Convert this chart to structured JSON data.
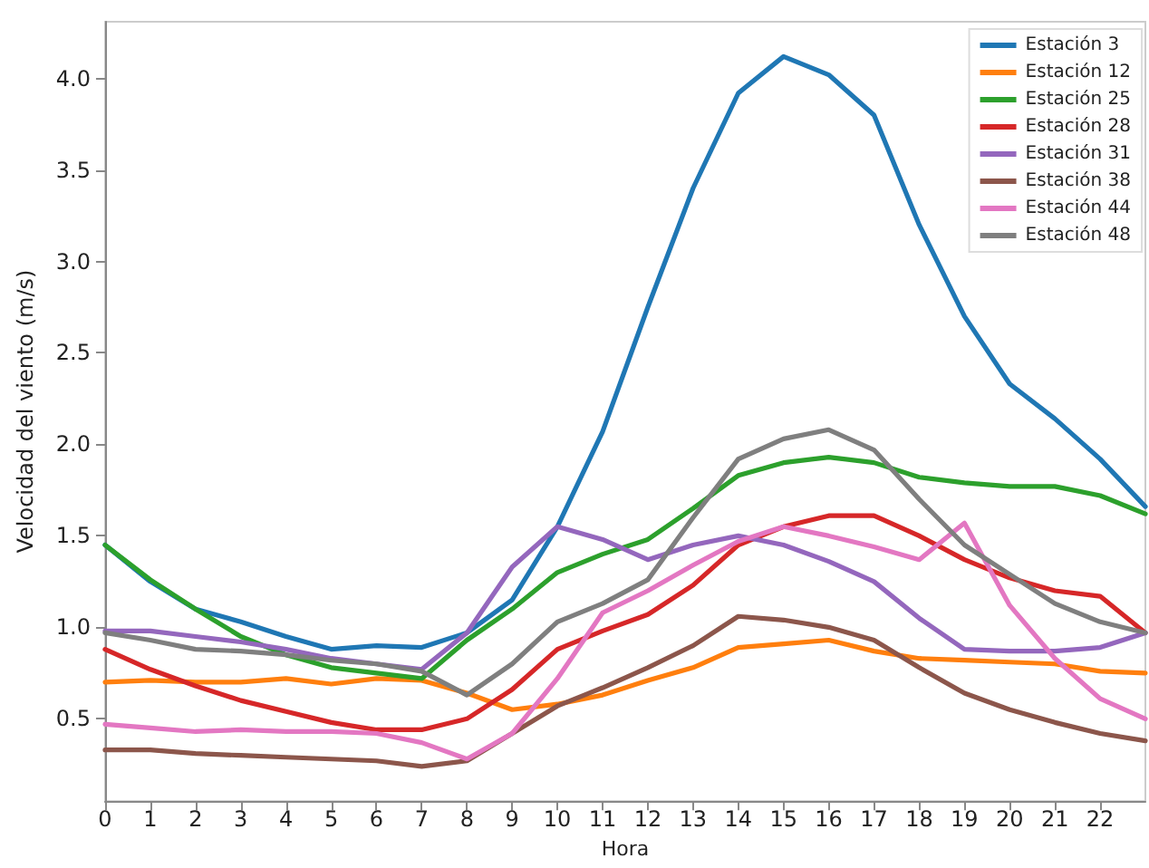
{
  "chart_data": {
    "type": "line",
    "xlabel": "Hora",
    "ylabel": "Velocidad del viento (m/s)",
    "x": [
      0,
      1,
      2,
      3,
      4,
      5,
      6,
      7,
      8,
      9,
      10,
      11,
      12,
      13,
      14,
      15,
      16,
      17,
      18,
      19,
      20,
      21,
      22,
      23
    ],
    "xlim": [
      0,
      23
    ],
    "xticks": [
      0,
      1,
      2,
      3,
      4,
      5,
      6,
      7,
      8,
      9,
      10,
      11,
      12,
      13,
      14,
      15,
      16,
      17,
      18,
      19,
      20,
      21,
      22
    ],
    "ylim": [
      0.05,
      4.31
    ],
    "yticks": [
      0.5,
      {
        "value": 1,
        "label": "1.0"
      },
      1.5,
      {
        "value": 2,
        "label": "2.0"
      },
      2.5,
      {
        "value": 3,
        "label": "3.0"
      },
      3.5,
      {
        "value": 4,
        "label": "4.0"
      }
    ],
    "grid": false,
    "legend": "top right",
    "marker": "none",
    "line_style": "solid",
    "series": [
      {
        "name": "Estación 3",
        "color": "#1f77b4",
        "values": [
          1.45,
          1.25,
          1.1,
          1.03,
          0.95,
          0.88,
          0.9,
          0.89,
          0.97,
          1.15,
          1.55,
          2.07,
          2.75,
          3.4,
          3.92,
          4.12,
          4.02,
          3.8,
          3.2,
          2.7,
          2.33,
          2.14,
          1.92,
          1.66
        ]
      },
      {
        "name": "Estación 12",
        "color": "#ff7f0e",
        "values": [
          0.7,
          0.71,
          0.7,
          0.7,
          0.72,
          0.69,
          0.72,
          0.71,
          0.64,
          0.55,
          0.58,
          0.63,
          0.71,
          0.78,
          0.89,
          0.91,
          0.93,
          0.87,
          0.83,
          0.82,
          0.81,
          0.8,
          0.76,
          0.75
        ]
      },
      {
        "name": "Estación 25",
        "color": "#2ca02c",
        "values": [
          1.45,
          1.26,
          1.1,
          0.95,
          0.85,
          0.78,
          0.75,
          0.72,
          0.93,
          1.1,
          1.3,
          1.4,
          1.48,
          1.65,
          1.83,
          1.9,
          1.93,
          1.9,
          1.82,
          1.79,
          1.77,
          1.77,
          1.72,
          1.62
        ]
      },
      {
        "name": "Estación 28",
        "color": "#d62728",
        "values": [
          0.88,
          0.77,
          0.68,
          0.6,
          0.54,
          0.48,
          0.44,
          0.44,
          0.5,
          0.66,
          0.88,
          0.98,
          1.07,
          1.23,
          1.45,
          1.55,
          1.61,
          1.61,
          1.5,
          1.37,
          1.27,
          1.2,
          1.17,
          0.97
        ]
      },
      {
        "name": "Estación 31",
        "color": "#9467bd",
        "values": [
          0.98,
          0.98,
          0.95,
          0.92,
          0.88,
          0.83,
          0.8,
          0.77,
          0.97,
          1.33,
          1.55,
          1.48,
          1.37,
          1.45,
          1.5,
          1.45,
          1.36,
          1.25,
          1.05,
          0.88,
          0.87,
          0.87,
          0.89,
          0.97
        ]
      },
      {
        "name": "Estación 38",
        "color": "#8c564b",
        "values": [
          0.33,
          0.33,
          0.31,
          0.3,
          0.29,
          0.28,
          0.27,
          0.24,
          0.27,
          0.42,
          0.57,
          0.67,
          0.78,
          0.9,
          1.06,
          1.04,
          1.0,
          0.93,
          0.78,
          0.64,
          0.55,
          0.48,
          0.42,
          0.38
        ]
      },
      {
        "name": "Estación 44",
        "color": "#e377c2",
        "values": [
          0.47,
          0.45,
          0.43,
          0.44,
          0.43,
          0.43,
          0.42,
          0.37,
          0.28,
          0.42,
          0.72,
          1.08,
          1.2,
          1.34,
          1.47,
          1.55,
          1.5,
          1.44,
          1.37,
          1.57,
          1.12,
          0.83,
          0.61,
          0.5
        ]
      },
      {
        "name": "Estación 48",
        "color": "#7f7f7f",
        "values": [
          0.97,
          0.93,
          0.88,
          0.87,
          0.85,
          0.82,
          0.8,
          0.76,
          0.63,
          0.8,
          1.03,
          1.13,
          1.26,
          1.6,
          1.92,
          2.03,
          2.08,
          1.97,
          1.7,
          1.45,
          1.29,
          1.13,
          1.03,
          0.97
        ]
      }
    ]
  }
}
